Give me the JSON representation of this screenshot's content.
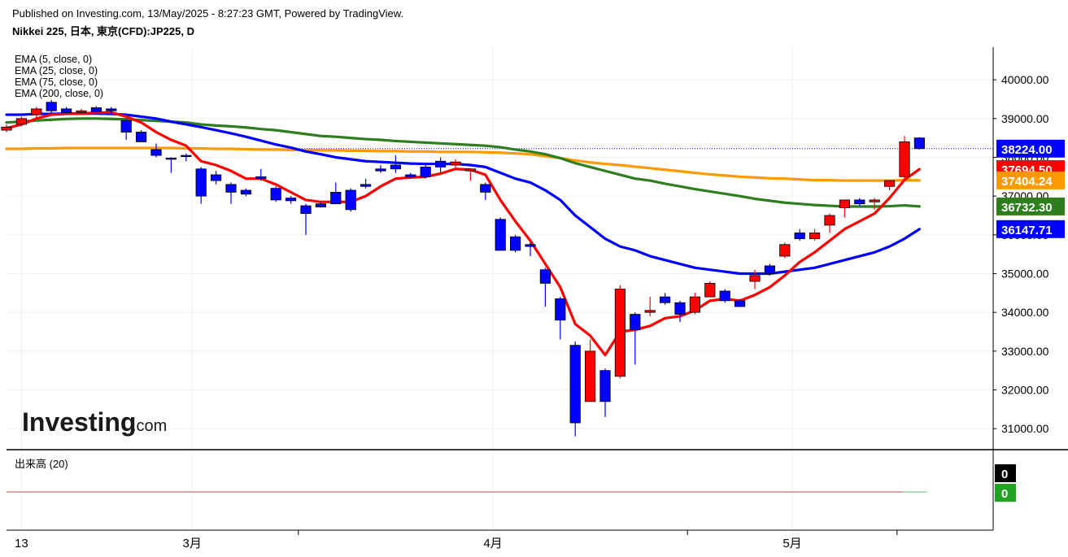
{
  "header": {
    "published": "Published on Investing.com, 13/May/2025 - 8:27:23 GMT, Powered by TradingView.",
    "title": "Nikkei 225, 日本, 東京(CFD):JP225, D"
  },
  "legend": [
    {
      "label": "EMA (5, close, 0)"
    },
    {
      "label": "EMA (25, close, 0)"
    },
    {
      "label": "EMA (75, close, 0)"
    },
    {
      "label": "EMA (200, close, 0)"
    }
  ],
  "volume_label": "出来高 (20)",
  "watermark": {
    "main": "Investing",
    "suffix": ".com"
  },
  "chart_data": {
    "type": "candlestick",
    "ylim": [
      30200,
      40800
    ],
    "y_ticks": [
      31000,
      32000,
      33000,
      34000,
      35000,
      36000,
      37000,
      38000,
      39000,
      40000
    ],
    "x_labels": [
      {
        "label": "13",
        "index": 1
      },
      {
        "label": "3月",
        "index": 12.4
      },
      {
        "label": "4月",
        "index": 32.5
      },
      {
        "label": "5月",
        "index": 52.5
      }
    ],
    "x_divider_indices": [
      19.5,
      45.5,
      59.5
    ],
    "candles": [
      {
        "o": 38700,
        "h": 38850,
        "l": 38650,
        "c": 38780
      },
      {
        "o": 38850,
        "h": 39050,
        "l": 38800,
        "c": 39000
      },
      {
        "o": 39100,
        "h": 39300,
        "l": 39000,
        "c": 39250
      },
      {
        "o": 39420,
        "h": 39480,
        "l": 39150,
        "c": 39200
      },
      {
        "o": 39250,
        "h": 39300,
        "l": 39100,
        "c": 39150
      },
      {
        "o": 39150,
        "h": 39250,
        "l": 39100,
        "c": 39200
      },
      {
        "o": 39280,
        "h": 39320,
        "l": 39150,
        "c": 39180
      },
      {
        "o": 39250,
        "h": 39300,
        "l": 39100,
        "c": 39200
      },
      {
        "o": 38950,
        "h": 39000,
        "l": 38450,
        "c": 38650
      },
      {
        "o": 38650,
        "h": 38700,
        "l": 38400,
        "c": 38400
      },
      {
        "o": 38200,
        "h": 38350,
        "l": 38000,
        "c": 38050
      },
      {
        "o": 37980,
        "h": 38000,
        "l": 37600,
        "c": 37960
      },
      {
        "o": 38050,
        "h": 38100,
        "l": 37900,
        "c": 38030
      },
      {
        "o": 37700,
        "h": 37750,
        "l": 36800,
        "c": 37000
      },
      {
        "o": 37550,
        "h": 37650,
        "l": 37300,
        "c": 37400
      },
      {
        "o": 37300,
        "h": 37350,
        "l": 36800,
        "c": 37100
      },
      {
        "o": 37150,
        "h": 37200,
        "l": 37000,
        "c": 37050
      },
      {
        "o": 37500,
        "h": 37700,
        "l": 37400,
        "c": 37450
      },
      {
        "o": 37200,
        "h": 37250,
        "l": 36850,
        "c": 36900
      },
      {
        "o": 36950,
        "h": 37000,
        "l": 36800,
        "c": 36880
      },
      {
        "o": 36750,
        "h": 36800,
        "l": 36000,
        "c": 36550
      },
      {
        "o": 36800,
        "h": 36850,
        "l": 36700,
        "c": 36720
      },
      {
        "o": 37100,
        "h": 37350,
        "l": 36800,
        "c": 36800
      },
      {
        "o": 37150,
        "h": 37200,
        "l": 36600,
        "c": 36650
      },
      {
        "o": 37300,
        "h": 37450,
        "l": 37200,
        "c": 37250
      },
      {
        "o": 37700,
        "h": 37800,
        "l": 37600,
        "c": 37650
      },
      {
        "o": 37800,
        "h": 38050,
        "l": 37600,
        "c": 37700
      },
      {
        "o": 37550,
        "h": 37600,
        "l": 37450,
        "c": 37500
      },
      {
        "o": 37750,
        "h": 37850,
        "l": 37450,
        "c": 37500
      },
      {
        "o": 37900,
        "h": 38000,
        "l": 37600,
        "c": 37750
      },
      {
        "o": 37800,
        "h": 37950,
        "l": 37700,
        "c": 37880
      },
      {
        "o": 37650,
        "h": 37700,
        "l": 37400,
        "c": 37700
      },
      {
        "o": 37300,
        "h": 37350,
        "l": 36900,
        "c": 37100
      },
      {
        "o": 36400,
        "h": 36450,
        "l": 35600,
        "c": 35600
      },
      {
        "o": 35950,
        "h": 36000,
        "l": 35550,
        "c": 35600
      },
      {
        "o": 35750,
        "h": 35800,
        "l": 35450,
        "c": 35700
      },
      {
        "o": 35100,
        "h": 35150,
        "l": 34150,
        "c": 34750
      },
      {
        "o": 34350,
        "h": 34400,
        "l": 33300,
        "c": 33800
      },
      {
        "o": 33150,
        "h": 33250,
        "l": 30800,
        "c": 31150
      },
      {
        "o": 31700,
        "h": 33300,
        "l": 31700,
        "c": 33000
      },
      {
        "o": 32500,
        "h": 32550,
        "l": 31300,
        "c": 31700
      },
      {
        "o": 32350,
        "h": 34700,
        "l": 32300,
        "c": 34600
      },
      {
        "o": 33950,
        "h": 34000,
        "l": 32650,
        "c": 33550
      },
      {
        "o": 34000,
        "h": 34400,
        "l": 33900,
        "c": 34050
      },
      {
        "o": 34400,
        "h": 34500,
        "l": 34200,
        "c": 34250
      },
      {
        "o": 34250,
        "h": 34300,
        "l": 33750,
        "c": 33950
      },
      {
        "o": 34000,
        "h": 34500,
        "l": 33950,
        "c": 34400
      },
      {
        "o": 34400,
        "h": 34800,
        "l": 34400,
        "c": 34750
      },
      {
        "o": 34550,
        "h": 34600,
        "l": 34250,
        "c": 34300
      },
      {
        "o": 34300,
        "h": 34350,
        "l": 34150,
        "c": 34150
      },
      {
        "o": 34800,
        "h": 35100,
        "l": 34600,
        "c": 34950
      },
      {
        "o": 35200,
        "h": 35250,
        "l": 34950,
        "c": 35000
      },
      {
        "o": 35450,
        "h": 35800,
        "l": 35400,
        "c": 35750
      },
      {
        "o": 36050,
        "h": 36150,
        "l": 35850,
        "c": 35900
      },
      {
        "o": 35900,
        "h": 36150,
        "l": 35850,
        "c": 36050
      },
      {
        "o": 36250,
        "h": 36550,
        "l": 36050,
        "c": 36500
      },
      {
        "o": 36700,
        "h": 36900,
        "l": 36450,
        "c": 36900
      },
      {
        "o": 36900,
        "h": 36950,
        "l": 36750,
        "c": 36800
      },
      {
        "o": 36850,
        "h": 36950,
        "l": 36650,
        "c": 36900
      },
      {
        "o": 37250,
        "h": 37350,
        "l": 37150,
        "c": 37400
      },
      {
        "o": 37500,
        "h": 38550,
        "l": 37400,
        "c": 38400
      },
      {
        "o": 38500,
        "h": 38520,
        "l": 38200,
        "c": 38224
      }
    ],
    "series": [
      {
        "name": "EMA (5, close, 0)",
        "color": "#ff0000",
        "values": [
          38750,
          38850,
          39000,
          39100,
          39120,
          39130,
          39150,
          39160,
          39050,
          38900,
          38650,
          38450,
          38300,
          37900,
          37800,
          37650,
          37450,
          37450,
          37300,
          37100,
          36900,
          36850,
          36850,
          36850,
          37000,
          37250,
          37450,
          37480,
          37500,
          37580,
          37700,
          37680,
          37550,
          36900,
          36350,
          35850,
          35250,
          34650,
          33700,
          33400,
          32900,
          33500,
          33550,
          33650,
          33850,
          33900,
          34050,
          34300,
          34350,
          34300,
          34450,
          34650,
          34950,
          35300,
          35550,
          35850,
          36150,
          36350,
          36550,
          36950,
          37420,
          37694.5
        ]
      },
      {
        "name": "EMA (25, close, 0)",
        "color": "#0000ff",
        "values": [
          39100,
          39100,
          39120,
          39120,
          39130,
          39130,
          39130,
          39120,
          39100,
          39050,
          39000,
          38920,
          38850,
          38780,
          38700,
          38620,
          38530,
          38430,
          38330,
          38250,
          38150,
          38080,
          38000,
          37950,
          37900,
          37880,
          37860,
          37840,
          37830,
          37830,
          37830,
          37800,
          37750,
          37600,
          37450,
          37350,
          37150,
          36900,
          36500,
          36200,
          35900,
          35700,
          35600,
          35450,
          35350,
          35250,
          35150,
          35100,
          35050,
          35000,
          35000,
          35000,
          35050,
          35100,
          35150,
          35250,
          35350,
          35450,
          35550,
          35700,
          35900,
          36147.71
        ]
      },
      {
        "name": "EMA (75, close, 0)",
        "color": "#2e7d1e",
        "values": [
          38900,
          38920,
          38950,
          38970,
          38990,
          39000,
          39000,
          38990,
          38980,
          38960,
          38940,
          38920,
          38900,
          38850,
          38820,
          38800,
          38770,
          38730,
          38700,
          38650,
          38600,
          38550,
          38530,
          38500,
          38470,
          38450,
          38420,
          38400,
          38380,
          38360,
          38340,
          38320,
          38300,
          38260,
          38200,
          38150,
          38080,
          37980,
          37850,
          37750,
          37650,
          37550,
          37450,
          37400,
          37320,
          37250,
          37180,
          37120,
          37060,
          37000,
          36930,
          36880,
          36830,
          36800,
          36770,
          36750,
          36730,
          36730,
          36730,
          36740,
          36760,
          36732.3
        ]
      },
      {
        "name": "EMA (200, close, 0)",
        "color": "#ff9900",
        "values": [
          38220,
          38220,
          38230,
          38230,
          38240,
          38240,
          38240,
          38240,
          38240,
          38240,
          38240,
          38240,
          38230,
          38230,
          38220,
          38220,
          38210,
          38200,
          38200,
          38190,
          38190,
          38180,
          38180,
          38170,
          38170,
          38160,
          38160,
          38150,
          38150,
          38140,
          38140,
          38140,
          38130,
          38120,
          38100,
          38080,
          38030,
          37980,
          37920,
          37870,
          37830,
          37800,
          37760,
          37720,
          37680,
          37640,
          37600,
          37560,
          37530,
          37500,
          37480,
          37460,
          37450,
          37430,
          37410,
          37410,
          37400,
          37400,
          37400,
          37400,
          37410,
          37404.24
        ]
      }
    ],
    "badges": [
      {
        "text": "38224.00",
        "color": "#0000ff"
      },
      {
        "text": "37694.50",
        "color": "#ff0000"
      },
      {
        "text": "37404.24",
        "color": "#ff9900"
      },
      {
        "text": "36732.30",
        "color": "#2e7d1e"
      },
      {
        "text": "36147.71",
        "color": "#0000ff"
      }
    ],
    "last_price": 38224,
    "volume_badges": [
      {
        "text": "0",
        "color": "#000000"
      },
      {
        "text": "0",
        "color": "#21a321"
      }
    ],
    "up_color": "#ff0000",
    "down_color": "#0000ff"
  }
}
